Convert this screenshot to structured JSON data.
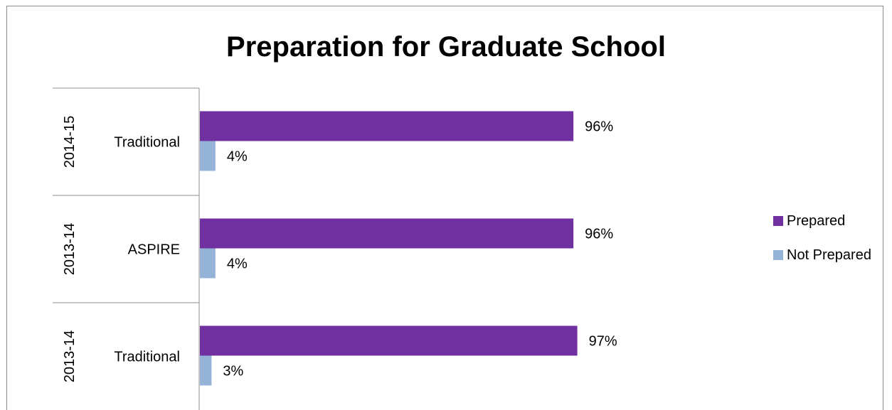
{
  "chart_data": {
    "type": "bar",
    "orientation": "horizontal",
    "title": "Preparation for Graduate School",
    "categories": [
      {
        "year": "2014-15",
        "program": "Traditional"
      },
      {
        "year": "2013-14",
        "program": "ASPIRE"
      },
      {
        "year": "2013-14",
        "program": "Traditional"
      }
    ],
    "series": [
      {
        "name": "Prepared",
        "color": "#7030a0",
        "values": [
          96,
          96,
          97
        ],
        "labels": [
          "96%",
          "96%",
          "97%"
        ]
      },
      {
        "name": "Not Prepared",
        "color": "#95b3d7",
        "values": [
          4,
          4,
          3
        ],
        "labels": [
          "4%",
          "4%",
          "3%"
        ]
      }
    ],
    "value_unit": "%",
    "xlim": [
      0,
      100
    ],
    "grid": false,
    "legend_position": "right"
  }
}
